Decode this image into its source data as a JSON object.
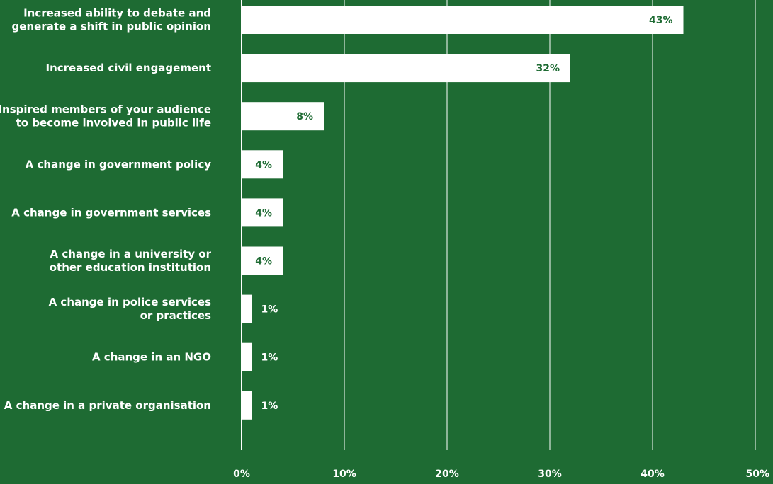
{
  "colors": {
    "background": "#1e6b33",
    "bar": "#ffffff",
    "label_text": "#ffffff",
    "value_text": "#1e6b33"
  },
  "chart_data": {
    "type": "bar",
    "orientation": "horizontal",
    "title": "",
    "xlabel": "",
    "ylabel": "",
    "xlim": [
      0,
      50
    ],
    "grid": true,
    "categories": [
      [
        "Increased ability to debate and",
        "generate a shift in public opinion"
      ],
      [
        "Increased civil engagement"
      ],
      [
        "Inspired members of your audience",
        "to become involved in public life"
      ],
      [
        "A change in government policy"
      ],
      [
        "A change in government services"
      ],
      [
        "A change in a university or",
        "other education institution"
      ],
      [
        "A change in police services",
        "or practices"
      ],
      [
        "A change in an NGO"
      ],
      [
        "A change in a private organisation"
      ]
    ],
    "values": [
      43,
      32,
      8,
      4,
      4,
      4,
      1,
      1,
      1
    ],
    "value_labels": [
      "43%",
      "32%",
      "8%",
      "4%",
      "4%",
      "4%",
      "1%",
      "1%",
      "1%"
    ],
    "x_ticks": [
      0,
      10,
      20,
      30,
      40,
      50
    ],
    "x_tick_labels": [
      "0%",
      "10%",
      "20%",
      "30%",
      "40%",
      "50%"
    ]
  }
}
